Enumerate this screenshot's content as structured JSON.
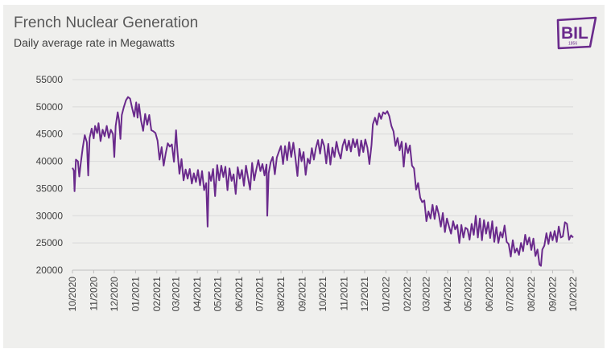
{
  "brand": {
    "logo_text": "BIL",
    "logo_year": "1856",
    "logo_color": "#6a2a8c"
  },
  "chart_data": {
    "type": "line",
    "title": "French Nuclear Generation",
    "subtitle": "Daily average rate in Megawatts",
    "xlabel": "",
    "ylabel": "",
    "ylim": [
      20000,
      55000
    ],
    "yticks": [
      20000,
      25000,
      30000,
      35000,
      40000,
      45000,
      50000,
      55000
    ],
    "xlim": [
      "2020-10-01",
      "2022-10-01"
    ],
    "xticks": [
      "10/2020",
      "11/2020",
      "12/2020",
      "01/2021",
      "02/2021",
      "03/2021",
      "04/2021",
      "05/2021",
      "06/2021",
      "07/2021",
      "08/2021",
      "09/2021",
      "10/2021",
      "11/2021",
      "12/2021",
      "01/2022",
      "02/2022",
      "03/2022",
      "04/2022",
      "05/2022",
      "06/2022",
      "07/2022",
      "08/2022",
      "09/2022",
      "10/2022"
    ],
    "grid": true,
    "line_color": "#6a2a8c",
    "series": [
      {
        "values": [
          [
            "2020-10-01",
            38800
          ],
          [
            "2020-10-03",
            38300
          ],
          [
            "2020-10-04",
            34500
          ],
          [
            "2020-10-06",
            40300
          ],
          [
            "2020-10-09",
            40000
          ],
          [
            "2020-10-11",
            37200
          ],
          [
            "2020-10-13",
            39500
          ],
          [
            "2020-10-16",
            42500
          ],
          [
            "2020-10-19",
            44800
          ],
          [
            "2020-10-22",
            43500
          ],
          [
            "2020-10-24",
            37400
          ],
          [
            "2020-10-26",
            44300
          ],
          [
            "2020-10-29",
            46000
          ],
          [
            "2020-11-01",
            44200
          ],
          [
            "2020-11-03",
            46500
          ],
          [
            "2020-11-06",
            45200
          ],
          [
            "2020-11-08",
            47000
          ],
          [
            "2020-11-11",
            43700
          ],
          [
            "2020-11-14",
            45800
          ],
          [
            "2020-11-17",
            44600
          ],
          [
            "2020-11-20",
            46500
          ],
          [
            "2020-11-23",
            44300
          ],
          [
            "2020-11-26",
            45800
          ],
          [
            "2020-11-29",
            45000
          ],
          [
            "2020-12-01",
            40800
          ],
          [
            "2020-12-03",
            46500
          ],
          [
            "2020-12-06",
            49000
          ],
          [
            "2020-12-08",
            47500
          ],
          [
            "2020-12-10",
            44100
          ],
          [
            "2020-12-12",
            48500
          ],
          [
            "2020-12-15",
            50000
          ],
          [
            "2020-12-18",
            51200
          ],
          [
            "2020-12-21",
            51800
          ],
          [
            "2020-12-24",
            51500
          ],
          [
            "2020-12-27",
            49800
          ],
          [
            "2020-12-30",
            48200
          ],
          [
            "2021-01-02",
            50800
          ],
          [
            "2021-01-04",
            48000
          ],
          [
            "2021-01-06",
            50500
          ],
          [
            "2021-01-09",
            47500
          ],
          [
            "2021-01-12",
            45600
          ],
          [
            "2021-01-15",
            48700
          ],
          [
            "2021-01-18",
            46700
          ],
          [
            "2021-01-21",
            48500
          ],
          [
            "2021-01-24",
            45700
          ],
          [
            "2021-01-27",
            45500
          ],
          [
            "2021-01-30",
            45200
          ],
          [
            "2021-02-02",
            43800
          ],
          [
            "2021-02-05",
            40300
          ],
          [
            "2021-02-08",
            42600
          ],
          [
            "2021-02-11",
            39200
          ],
          [
            "2021-02-14",
            41500
          ],
          [
            "2021-02-17",
            43300
          ],
          [
            "2021-02-20",
            42700
          ],
          [
            "2021-02-23",
            43100
          ],
          [
            "2021-02-26",
            39900
          ],
          [
            "2021-03-01",
            45700
          ],
          [
            "2021-03-03",
            41900
          ],
          [
            "2021-03-06",
            37700
          ],
          [
            "2021-03-09",
            40400
          ],
          [
            "2021-03-12",
            36500
          ],
          [
            "2021-03-15",
            38500
          ],
          [
            "2021-03-18",
            36800
          ],
          [
            "2021-03-21",
            38600
          ],
          [
            "2021-03-24",
            35900
          ],
          [
            "2021-03-27",
            37800
          ],
          [
            "2021-03-30",
            36200
          ],
          [
            "2021-04-02",
            38400
          ],
          [
            "2021-04-05",
            35600
          ],
          [
            "2021-04-08",
            38200
          ],
          [
            "2021-04-11",
            34700
          ],
          [
            "2021-04-14",
            36000
          ],
          [
            "2021-04-16",
            28000
          ],
          [
            "2021-04-18",
            38000
          ],
          [
            "2021-04-21",
            36400
          ],
          [
            "2021-04-24",
            38600
          ],
          [
            "2021-04-27",
            33600
          ],
          [
            "2021-04-30",
            39300
          ],
          [
            "2021-05-03",
            36500
          ],
          [
            "2021-05-06",
            39200
          ],
          [
            "2021-05-09",
            37100
          ],
          [
            "2021-05-12",
            39000
          ],
          [
            "2021-05-15",
            34700
          ],
          [
            "2021-05-18",
            38700
          ],
          [
            "2021-05-21",
            36400
          ],
          [
            "2021-05-24",
            37600
          ],
          [
            "2021-05-27",
            34000
          ],
          [
            "2021-05-30",
            38900
          ],
          [
            "2021-06-02",
            36800
          ],
          [
            "2021-06-05",
            38400
          ],
          [
            "2021-06-08",
            35500
          ],
          [
            "2021-06-11",
            39200
          ],
          [
            "2021-06-14",
            37000
          ],
          [
            "2021-06-17",
            34800
          ],
          [
            "2021-06-20",
            39700
          ],
          [
            "2021-06-23",
            36500
          ],
          [
            "2021-06-26",
            38500
          ],
          [
            "2021-06-29",
            40200
          ],
          [
            "2021-07-02",
            38200
          ],
          [
            "2021-07-05",
            39500
          ],
          [
            "2021-07-08",
            37400
          ],
          [
            "2021-07-11",
            39400
          ],
          [
            "2021-07-12",
            30000
          ],
          [
            "2021-07-14",
            37800
          ],
          [
            "2021-07-17",
            39800
          ],
          [
            "2021-07-20",
            40800
          ],
          [
            "2021-07-23",
            37600
          ],
          [
            "2021-07-26",
            40700
          ],
          [
            "2021-07-29",
            41800
          ],
          [
            "2021-08-01",
            42800
          ],
          [
            "2021-08-04",
            39500
          ],
          [
            "2021-08-07",
            42800
          ],
          [
            "2021-08-10",
            40200
          ],
          [
            "2021-08-13",
            43500
          ],
          [
            "2021-08-16",
            40800
          ],
          [
            "2021-08-19",
            43400
          ],
          [
            "2021-08-22",
            40700
          ],
          [
            "2021-08-25",
            37300
          ],
          [
            "2021-08-28",
            42300
          ],
          [
            "2021-08-31",
            40000
          ],
          [
            "2021-09-03",
            41700
          ],
          [
            "2021-09-06",
            37500
          ],
          [
            "2021-09-09",
            40500
          ],
          [
            "2021-09-12",
            39600
          ],
          [
            "2021-09-15",
            42400
          ],
          [
            "2021-09-18",
            40300
          ],
          [
            "2021-09-21",
            42500
          ],
          [
            "2021-09-24",
            43900
          ],
          [
            "2021-09-27",
            41400
          ],
          [
            "2021-09-30",
            44000
          ],
          [
            "2021-10-03",
            42800
          ],
          [
            "2021-10-06",
            39600
          ],
          [
            "2021-10-09",
            43200
          ],
          [
            "2021-10-12",
            39400
          ],
          [
            "2021-10-15",
            42500
          ],
          [
            "2021-10-18",
            40800
          ],
          [
            "2021-10-21",
            43600
          ],
          [
            "2021-10-24",
            41700
          ],
          [
            "2021-10-27",
            40500
          ],
          [
            "2021-10-30",
            42900
          ],
          [
            "2021-11-02",
            44000
          ],
          [
            "2021-11-05",
            42000
          ],
          [
            "2021-11-08",
            43800
          ],
          [
            "2021-11-11",
            41800
          ],
          [
            "2021-11-14",
            44100
          ],
          [
            "2021-11-17",
            42600
          ],
          [
            "2021-11-20",
            44000
          ],
          [
            "2021-11-23",
            41000
          ],
          [
            "2021-11-26",
            43800
          ],
          [
            "2021-11-29",
            41700
          ],
          [
            "2021-12-02",
            44000
          ],
          [
            "2021-12-05",
            42500
          ],
          [
            "2021-12-08",
            39500
          ],
          [
            "2021-12-11",
            43000
          ],
          [
            "2021-12-13",
            46800
          ],
          [
            "2021-12-16",
            48000
          ],
          [
            "2021-12-19",
            46700
          ],
          [
            "2021-12-22",
            48800
          ],
          [
            "2021-12-25",
            47800
          ],
          [
            "2021-12-28",
            49000
          ],
          [
            "2021-12-31",
            48700
          ],
          [
            "2022-01-03",
            49200
          ],
          [
            "2022-01-06",
            48300
          ],
          [
            "2022-01-09",
            46500
          ],
          [
            "2022-01-12",
            45500
          ],
          [
            "2022-01-15",
            42800
          ],
          [
            "2022-01-18",
            44300
          ],
          [
            "2022-01-21",
            42000
          ],
          [
            "2022-01-24",
            43600
          ],
          [
            "2022-01-27",
            39000
          ],
          [
            "2022-01-30",
            43300
          ],
          [
            "2022-02-02",
            41500
          ],
          [
            "2022-02-05",
            42900
          ],
          [
            "2022-02-08",
            39200
          ],
          [
            "2022-02-11",
            38700
          ],
          [
            "2022-02-14",
            34800
          ],
          [
            "2022-02-17",
            36000
          ],
          [
            "2022-02-20",
            33300
          ],
          [
            "2022-02-23",
            32500
          ],
          [
            "2022-02-26",
            32800
          ],
          [
            "2022-03-01",
            29000
          ],
          [
            "2022-03-04",
            30800
          ],
          [
            "2022-03-07",
            29500
          ],
          [
            "2022-03-10",
            32000
          ],
          [
            "2022-03-13",
            29400
          ],
          [
            "2022-03-16",
            31800
          ],
          [
            "2022-03-19",
            30300
          ],
          [
            "2022-03-22",
            28000
          ],
          [
            "2022-03-25",
            30500
          ],
          [
            "2022-03-28",
            27000
          ],
          [
            "2022-03-31",
            29500
          ],
          [
            "2022-04-03",
            28000
          ],
          [
            "2022-04-06",
            26700
          ],
          [
            "2022-04-09",
            29000
          ],
          [
            "2022-04-12",
            27500
          ],
          [
            "2022-04-15",
            28300
          ],
          [
            "2022-04-18",
            25000
          ],
          [
            "2022-04-21",
            28300
          ],
          [
            "2022-04-24",
            26000
          ],
          [
            "2022-04-27",
            27800
          ],
          [
            "2022-04-30",
            27500
          ],
          [
            "2022-05-03",
            25600
          ],
          [
            "2022-05-06",
            28500
          ],
          [
            "2022-05-09",
            26500
          ],
          [
            "2022-05-12",
            30000
          ],
          [
            "2022-05-15",
            26000
          ],
          [
            "2022-05-18",
            29500
          ],
          [
            "2022-05-21",
            25500
          ],
          [
            "2022-05-24",
            29200
          ],
          [
            "2022-05-27",
            26700
          ],
          [
            "2022-05-30",
            28800
          ],
          [
            "2022-06-02",
            25900
          ],
          [
            "2022-06-05",
            29000
          ],
          [
            "2022-06-08",
            25200
          ],
          [
            "2022-06-11",
            27900
          ],
          [
            "2022-06-14",
            25000
          ],
          [
            "2022-06-17",
            27000
          ],
          [
            "2022-06-20",
            26000
          ],
          [
            "2022-06-23",
            28200
          ],
          [
            "2022-06-26",
            25200
          ],
          [
            "2022-06-29",
            24800
          ],
          [
            "2022-07-02",
            22500
          ],
          [
            "2022-07-05",
            25500
          ],
          [
            "2022-07-08",
            23200
          ],
          [
            "2022-07-11",
            24000
          ],
          [
            "2022-07-14",
            22800
          ],
          [
            "2022-07-17",
            25000
          ],
          [
            "2022-07-20",
            23500
          ],
          [
            "2022-07-23",
            26500
          ],
          [
            "2022-07-26",
            24700
          ],
          [
            "2022-07-29",
            26000
          ],
          [
            "2022-08-01",
            23700
          ],
          [
            "2022-08-04",
            25800
          ],
          [
            "2022-08-07",
            22600
          ],
          [
            "2022-08-10",
            23800
          ],
          [
            "2022-08-13",
            21000
          ],
          [
            "2022-08-15",
            20800
          ],
          [
            "2022-08-17",
            23800
          ],
          [
            "2022-08-20",
            24500
          ],
          [
            "2022-08-23",
            26800
          ],
          [
            "2022-08-26",
            24800
          ],
          [
            "2022-08-29",
            27000
          ],
          [
            "2022-09-01",
            25500
          ],
          [
            "2022-09-04",
            27200
          ],
          [
            "2022-09-07",
            25200
          ],
          [
            "2022-09-10",
            28000
          ],
          [
            "2022-09-13",
            26000
          ],
          [
            "2022-09-16",
            26200
          ],
          [
            "2022-09-19",
            28800
          ],
          [
            "2022-09-22",
            28500
          ],
          [
            "2022-09-25",
            25600
          ],
          [
            "2022-09-28",
            26400
          ],
          [
            "2022-10-01",
            26000
          ]
        ]
      }
    ]
  }
}
